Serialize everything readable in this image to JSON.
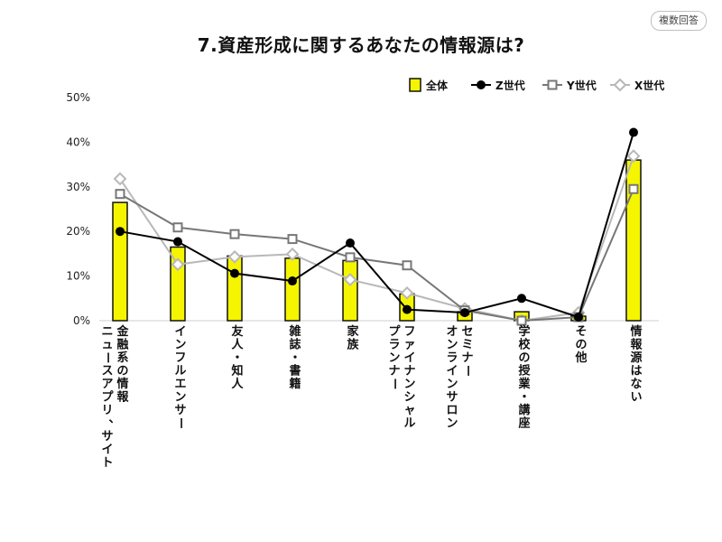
{
  "badge": "複数回答",
  "chart_data": {
    "type": "bar",
    "title": "7.資産形成に関するあなたの情報源は?",
    "ylim": [
      0,
      50
    ],
    "yticks": [
      "0%",
      "10%",
      "20%",
      "30%",
      "40%",
      "50%"
    ],
    "grid": false,
    "legend_position": "top-right",
    "categories": [
      [
        "金融系の情報",
        "ニュースアプリ、サイト"
      ],
      [
        "インフルエンサー"
      ],
      [
        "友人・知人"
      ],
      [
        "雑誌・書籍"
      ],
      [
        "家族"
      ],
      [
        "ファイナンシャル",
        "プランナー"
      ],
      [
        "セミナー",
        "オンラインサロン"
      ],
      [
        "学校の授業・講座"
      ],
      [
        "その他"
      ],
      [
        "情報源はない"
      ]
    ],
    "series": [
      {
        "name": "全体",
        "kind": "bar",
        "color": "#f5f500",
        "values": [
          26.5,
          16.5,
          14.5,
          14.0,
          13.5,
          6.0,
          2.0,
          2.0,
          1.0,
          36.0
        ]
      },
      {
        "name": "Z世代",
        "kind": "line",
        "color": "#000000",
        "marker": "circle",
        "values": [
          20.0,
          17.7,
          10.6,
          8.9,
          17.4,
          2.5,
          1.8,
          5.0,
          0.8,
          42.2
        ]
      },
      {
        "name": "Y世代",
        "kind": "line",
        "color": "#777777",
        "marker": "square",
        "values": [
          28.4,
          20.9,
          19.4,
          18.3,
          14.2,
          12.4,
          2.3,
          0.0,
          0.8,
          29.5
        ]
      },
      {
        "name": "X世代",
        "kind": "line",
        "color": "#b8b8b8",
        "marker": "diamond",
        "values": [
          31.8,
          12.6,
          14.3,
          14.9,
          9.2,
          6.2,
          2.7,
          0.0,
          1.8,
          36.9
        ]
      }
    ]
  }
}
